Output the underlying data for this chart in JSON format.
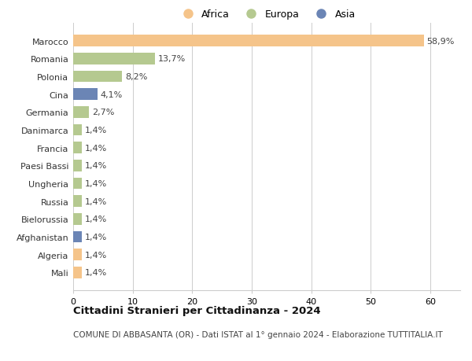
{
  "categories": [
    "Marocco",
    "Romania",
    "Polonia",
    "Cina",
    "Germania",
    "Danimarca",
    "Francia",
    "Paesi Bassi",
    "Ungheria",
    "Russia",
    "Bielorussia",
    "Afghanistan",
    "Algeria",
    "Mali"
  ],
  "values": [
    58.9,
    13.7,
    8.2,
    4.1,
    2.7,
    1.4,
    1.4,
    1.4,
    1.4,
    1.4,
    1.4,
    1.4,
    1.4,
    1.4
  ],
  "labels": [
    "58,9%",
    "13,7%",
    "8,2%",
    "4,1%",
    "2,7%",
    "1,4%",
    "1,4%",
    "1,4%",
    "1,4%",
    "1,4%",
    "1,4%",
    "1,4%",
    "1,4%",
    "1,4%"
  ],
  "continents": [
    "Africa",
    "Europa",
    "Europa",
    "Asia",
    "Europa",
    "Europa",
    "Europa",
    "Europa",
    "Europa",
    "Europa",
    "Europa",
    "Asia",
    "Africa",
    "Africa"
  ],
  "colors": {
    "Africa": "#F5C48A",
    "Europa": "#B5C990",
    "Asia": "#6B85B5"
  },
  "title": "Cittadini Stranieri per Cittadinanza - 2024",
  "subtitle": "COMUNE DI ABBASANTA (OR) - Dati ISTAT al 1° gennaio 2024 - Elaborazione TUTTITALIA.IT",
  "xlim": [
    0,
    65
  ],
  "xticks": [
    0,
    10,
    20,
    30,
    40,
    50,
    60
  ],
  "background_color": "#ffffff",
  "grid_color": "#cccccc"
}
